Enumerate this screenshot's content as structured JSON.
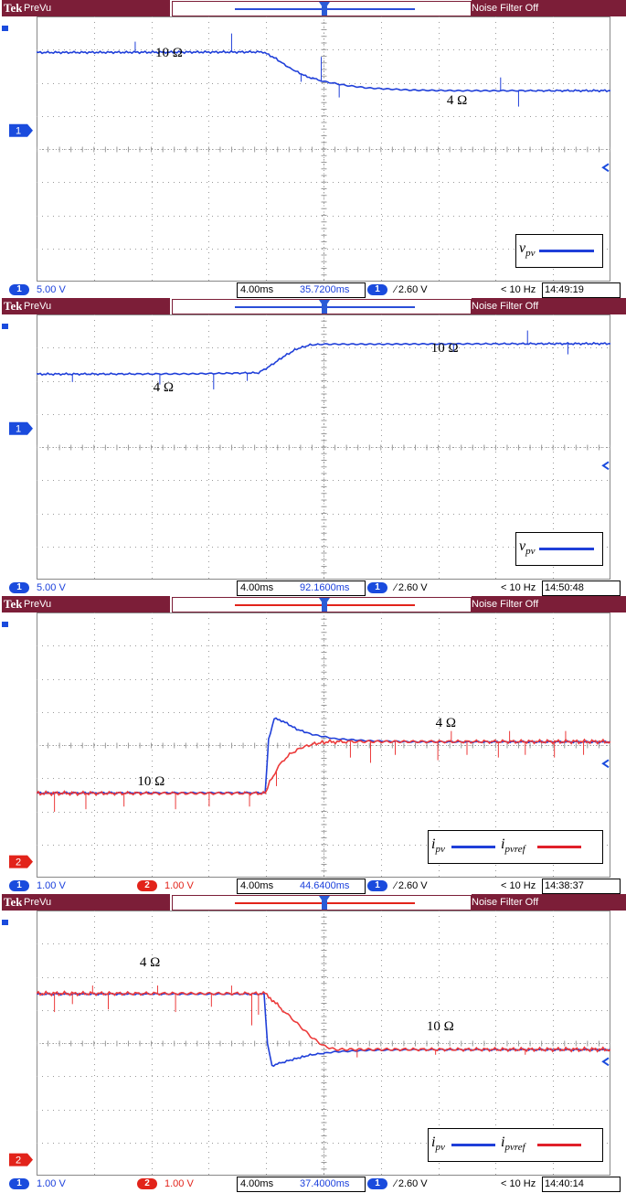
{
  "panels": [
    {
      "header": {
        "brand": "Tek",
        "mode": "PreVu",
        "filter": "Noise Filter Off"
      },
      "record_bar_color": "#2a4ed8",
      "channel_markers": [
        {
          "label": "1",
          "color": "#1a4bdd",
          "level": 0.57
        }
      ],
      "footer": {
        "ch1_scale": "5.00 V",
        "ch2_scale": "",
        "timebase": "4.00ms",
        "position": "35.7200ms",
        "trigger_ch": "1",
        "trigger_level": "2.60 V",
        "freq": "< 10 Hz",
        "time": "14:49:19"
      },
      "annotations": [
        {
          "text": "10 Ω",
          "x": -7.5,
          "y": 0.86
        },
        {
          "text": "4 Ω",
          "x": 5.5,
          "y": 0.68
        }
      ],
      "legend": [
        {
          "sym": "v",
          "sub": "pv",
          "color": "#1f3fd9"
        }
      ],
      "chart_data": {
        "type": "line",
        "xlabel": "",
        "ylabel": "",
        "xlim": [
          -12.8,
          12.8
        ],
        "ylim": [
          0,
          1
        ],
        "grid": true,
        "series": [
          {
            "color": "#1f3fd9",
            "x": [
              -12.8,
              -2.7,
              -2.2,
              -1.5,
              -0.8,
              0,
              1,
              2,
              4,
              6,
              8,
              12.8
            ],
            "y": [
              0.864,
              0.866,
              0.845,
              0.805,
              0.775,
              0.755,
              0.74,
              0.73,
              0.722,
              0.72,
              0.72,
              0.72
            ],
            "spikes": [
              [
                -8.4,
                0.04
              ],
              [
                -4.1,
                0.07
              ],
              [
                -0.1,
                0.09
              ],
              [
                0.7,
                -0.05
              ],
              [
                7.9,
                0.05
              ],
              [
                8.7,
                -0.06
              ],
              [
                -1.0,
                -0.03
              ]
            ]
          }
        ]
      }
    },
    {
      "header": {
        "brand": "Tek",
        "mode": "PreVu",
        "filter": "Noise Filter Off"
      },
      "record_bar_color": "#2a4ed8",
      "channel_markers": [
        {
          "label": "1",
          "color": "#1a4bdd",
          "level": 0.57
        }
      ],
      "footer": {
        "ch1_scale": "5.00 V",
        "ch2_scale": "",
        "timebase": "4.00ms",
        "position": "92.1600ms",
        "trigger_ch": "1",
        "trigger_level": "2.60 V",
        "freq": "< 10 Hz",
        "time": "14:50:48"
      },
      "annotations": [
        {
          "text": "4 Ω",
          "x": -7.6,
          "y": 0.72
        },
        {
          "text": "10 Ω",
          "x": 4.8,
          "y": 0.87
        }
      ],
      "legend": [
        {
          "sym": "v",
          "sub": "pv",
          "color": "#1f3fd9"
        }
      ],
      "chart_data": {
        "type": "line",
        "xlabel": "",
        "ylabel": "",
        "xlim": [
          -12.8,
          12.8
        ],
        "ylim": [
          0,
          1
        ],
        "grid": true,
        "series": [
          {
            "color": "#1f3fd9",
            "x": [
              -12.8,
              -6,
              -2.9,
              -2.4,
              -1.8,
              -1.2,
              -0.6,
              0,
              2,
              6,
              12.8
            ],
            "y": [
              0.775,
              0.776,
              0.78,
              0.805,
              0.84,
              0.87,
              0.885,
              0.888,
              0.888,
              0.889,
              0.89
            ],
            "spikes": [
              [
                -11.2,
                -0.03
              ],
              [
                -7.3,
                -0.04
              ],
              [
                -4.9,
                -0.06
              ],
              [
                -3.4,
                -0.03
              ],
              [
                5.8,
                -0.03
              ],
              [
                9.1,
                0.05
              ],
              [
                10.9,
                -0.04
              ]
            ]
          }
        ]
      }
    },
    {
      "header": {
        "brand": "Tek",
        "mode": "PreVu",
        "filter": "Noise Filter Off"
      },
      "record_bar_color": "#e2231a",
      "channel_markers": [
        {
          "label": "2",
          "color": "#e2231a",
          "level": 0.06
        }
      ],
      "footer": {
        "ch1_scale": "1.00 V",
        "ch2_scale": "1.00 V",
        "timebase": "4.00ms",
        "position": "44.6400ms",
        "trigger_ch": "1",
        "trigger_level": "2.60 V",
        "freq": "< 10 Hz",
        "time": "14:38:37"
      },
      "annotations": [
        {
          "text": "10 Ω",
          "x": -8.3,
          "y": 0.36
        },
        {
          "text": "4 Ω",
          "x": 5.0,
          "y": 0.58
        }
      ],
      "legend": [
        {
          "sym": "i",
          "sub": "pv",
          "color": "#1f3fd9"
        },
        {
          "sym": "i",
          "sub": "pvref",
          "color": "#e0202a"
        }
      ],
      "chart_data": {
        "type": "line",
        "xlabel": "",
        "ylabel": "",
        "xlim": [
          -12.8,
          12.8
        ],
        "ylim": [
          0,
          1
        ],
        "grid": true,
        "series": [
          {
            "color": "#1f3fd9",
            "x": [
              -12.8,
              -5,
              -2.6,
              -2.45,
              -2.2,
              -1.8,
              -1.2,
              -0.5,
              0.5,
              2,
              4,
              12.8
            ],
            "y": [
              0.319,
              0.32,
              0.32,
              0.52,
              0.6,
              0.59,
              0.56,
              0.54,
              0.524,
              0.516,
              0.512,
              0.512
            ],
            "spikes": []
          },
          {
            "color": "#ec3a3a",
            "x": [
              -12.8,
              -5,
              -2.6,
              -2.4,
              -2.0,
              -1.6,
              -1.0,
              -0.4,
              0.2,
              1.5,
              4,
              12.8
            ],
            "y": [
              0.318,
              0.318,
              0.318,
              0.36,
              0.42,
              0.46,
              0.49,
              0.505,
              0.512,
              0.513,
              0.513,
              0.513
            ],
            "spikes": [
              [
                -12.0,
                -0.07
              ],
              [
                -10.6,
                -0.06
              ],
              [
                -8.9,
                -0.05
              ],
              [
                -6.6,
                -0.06
              ],
              [
                -5.1,
                -0.05
              ],
              [
                -3.3,
                -0.05
              ],
              [
                -2.1,
                -0.06
              ],
              [
                1.2,
                -0.06
              ],
              [
                2.1,
                -0.08
              ],
              [
                3.2,
                -0.05
              ],
              [
                5.1,
                -0.07
              ],
              [
                6.4,
                -0.05
              ],
              [
                7.8,
                -0.06
              ],
              [
                9.0,
                -0.05
              ],
              [
                10.3,
                -0.06
              ],
              [
                11.6,
                -0.05
              ],
              [
                5.7,
                0.04
              ],
              [
                8.3,
                0.04
              ],
              [
                10.8,
                0.04
              ]
            ]
          }
        ]
      }
    },
    {
      "header": {
        "brand": "Tek",
        "mode": "PreVu",
        "filter": "Noise Filter Off"
      },
      "record_bar_color": "#e2231a",
      "channel_markers": [
        {
          "label": "2",
          "color": "#e2231a",
          "level": 0.06
        }
      ],
      "footer": {
        "ch1_scale": "1.00 V",
        "ch2_scale": "1.00 V",
        "timebase": "4.00ms",
        "position": "37.4000ms",
        "trigger_ch": "1",
        "trigger_level": "2.60 V",
        "freq": "< 10 Hz",
        "time": "14:40:14"
      },
      "annotations": [
        {
          "text": "4 Ω",
          "x": -8.2,
          "y": 0.8
        },
        {
          "text": "10 Ω",
          "x": 4.6,
          "y": 0.56
        }
      ],
      "legend": [
        {
          "sym": "i",
          "sub": "pv",
          "color": "#1f3fd9"
        },
        {
          "sym": "i",
          "sub": "pvref",
          "color": "#e0202a"
        }
      ],
      "chart_data": {
        "type": "line",
        "xlabel": "",
        "ylabel": "",
        "xlim": [
          -12.8,
          12.8
        ],
        "ylim": [
          0,
          1
        ],
        "grid": true,
        "series": [
          {
            "color": "#1f3fd9",
            "x": [
              -12.8,
              -5,
              -2.65,
              -2.5,
              -2.3,
              -1.9,
              -1.3,
              -0.6,
              0.5,
              2,
              4,
              12.8
            ],
            "y": [
              0.685,
              0.685,
              0.685,
              0.5,
              0.415,
              0.425,
              0.44,
              0.455,
              0.467,
              0.473,
              0.475,
              0.475
            ],
            "spikes": []
          },
          {
            "color": "#ec3a3a",
            "x": [
              -12.8,
              -5,
              -2.6,
              -2.3,
              -1.9,
              -1.5,
              -1.0,
              -0.5,
              0,
              0.5,
              2,
              12.8
            ],
            "y": [
              0.687,
              0.687,
              0.687,
              0.665,
              0.63,
              0.6,
              0.56,
              0.52,
              0.49,
              0.476,
              0.476,
              0.476
            ],
            "spikes": [
              [
                -12.0,
                -0.07
              ],
              [
                -11.2,
                -0.04
              ],
              [
                -9.6,
                -0.06
              ],
              [
                -6.6,
                -0.07
              ],
              [
                -5.0,
                -0.05
              ],
              [
                -3.2,
                -0.12
              ],
              [
                -2.9,
                -0.08
              ],
              [
                1.5,
                -0.03
              ],
              [
                5.0,
                -0.02
              ],
              [
                9.0,
                -0.02
              ],
              [
                -10.3,
                0.03
              ],
              [
                -7.4,
                0.03
              ],
              [
                -4.1,
                0.03
              ]
            ]
          }
        ]
      }
    }
  ]
}
